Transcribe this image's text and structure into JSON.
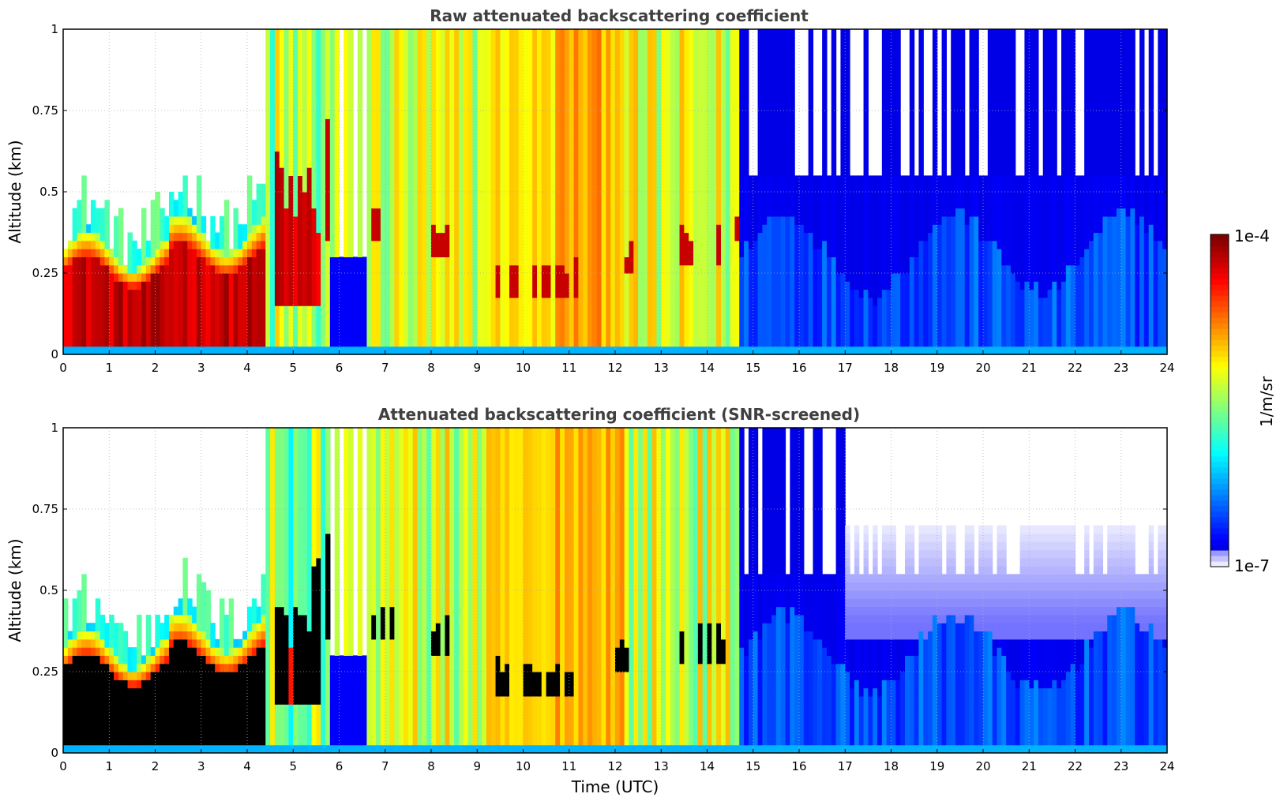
{
  "chart_data": [
    {
      "type": "heatmap",
      "title": "Raw attenuated backscattering coefficient",
      "xlabel": "",
      "ylabel": "Altitude (km)",
      "xlim": [
        0,
        24
      ],
      "ylim": [
        0,
        1
      ],
      "x_ticks": [
        "0",
        "1",
        "2",
        "3",
        "4",
        "5",
        "6",
        "7",
        "8",
        "9",
        "10",
        "11",
        "12",
        "13",
        "14",
        "15",
        "16",
        "17",
        "18",
        "19",
        "20",
        "21",
        "22",
        "23",
        "24"
      ],
      "y_ticks": [
        "0",
        "0.25",
        "0.5",
        "0.75",
        "1"
      ],
      "grid": true,
      "screened": false,
      "cloud_base_km": [
        {
          "t0": 4.6,
          "t1": 5.6,
          "base": 0.15
        },
        {
          "t0": 5.7,
          "t1": 6.3,
          "base": 0.35
        },
        {
          "t0": 6.5,
          "t1": 7.2,
          "base": 0.35
        },
        {
          "t0": 7.9,
          "t1": 8.4,
          "base": 0.3
        },
        {
          "t0": 9.4,
          "t1": 11.2,
          "base": 0.18
        },
        {
          "t0": 12.0,
          "t1": 12.4,
          "base": 0.25
        },
        {
          "t0": 13.2,
          "t1": 14.4,
          "base": 0.28
        },
        {
          "t0": 14.6,
          "t1": 15.3,
          "base": 0.35
        }
      ]
    },
    {
      "type": "heatmap",
      "title": "Attenuated backscattering coefficient (SNR-screened)",
      "xlabel": "Time (UTC)",
      "ylabel": "Altitude (km)",
      "xlim": [
        0,
        24
      ],
      "ylim": [
        0,
        1
      ],
      "x_ticks": [
        "0",
        "1",
        "2",
        "3",
        "4",
        "5",
        "6",
        "7",
        "8",
        "9",
        "10",
        "11",
        "12",
        "13",
        "14",
        "15",
        "16",
        "17",
        "18",
        "19",
        "20",
        "21",
        "22",
        "23",
        "24"
      ],
      "y_ticks": [
        "0",
        "0.25",
        "0.5",
        "0.75",
        "1"
      ],
      "grid": true,
      "screened": true,
      "saturated_color": "#000000"
    }
  ],
  "colorbar": {
    "label": "1/m/sr",
    "max_label": "1e-4",
    "min_label": "1e-7",
    "scale": "log",
    "colormap": "jet",
    "min_value": 1e-07,
    "max_value": 0.0001
  }
}
